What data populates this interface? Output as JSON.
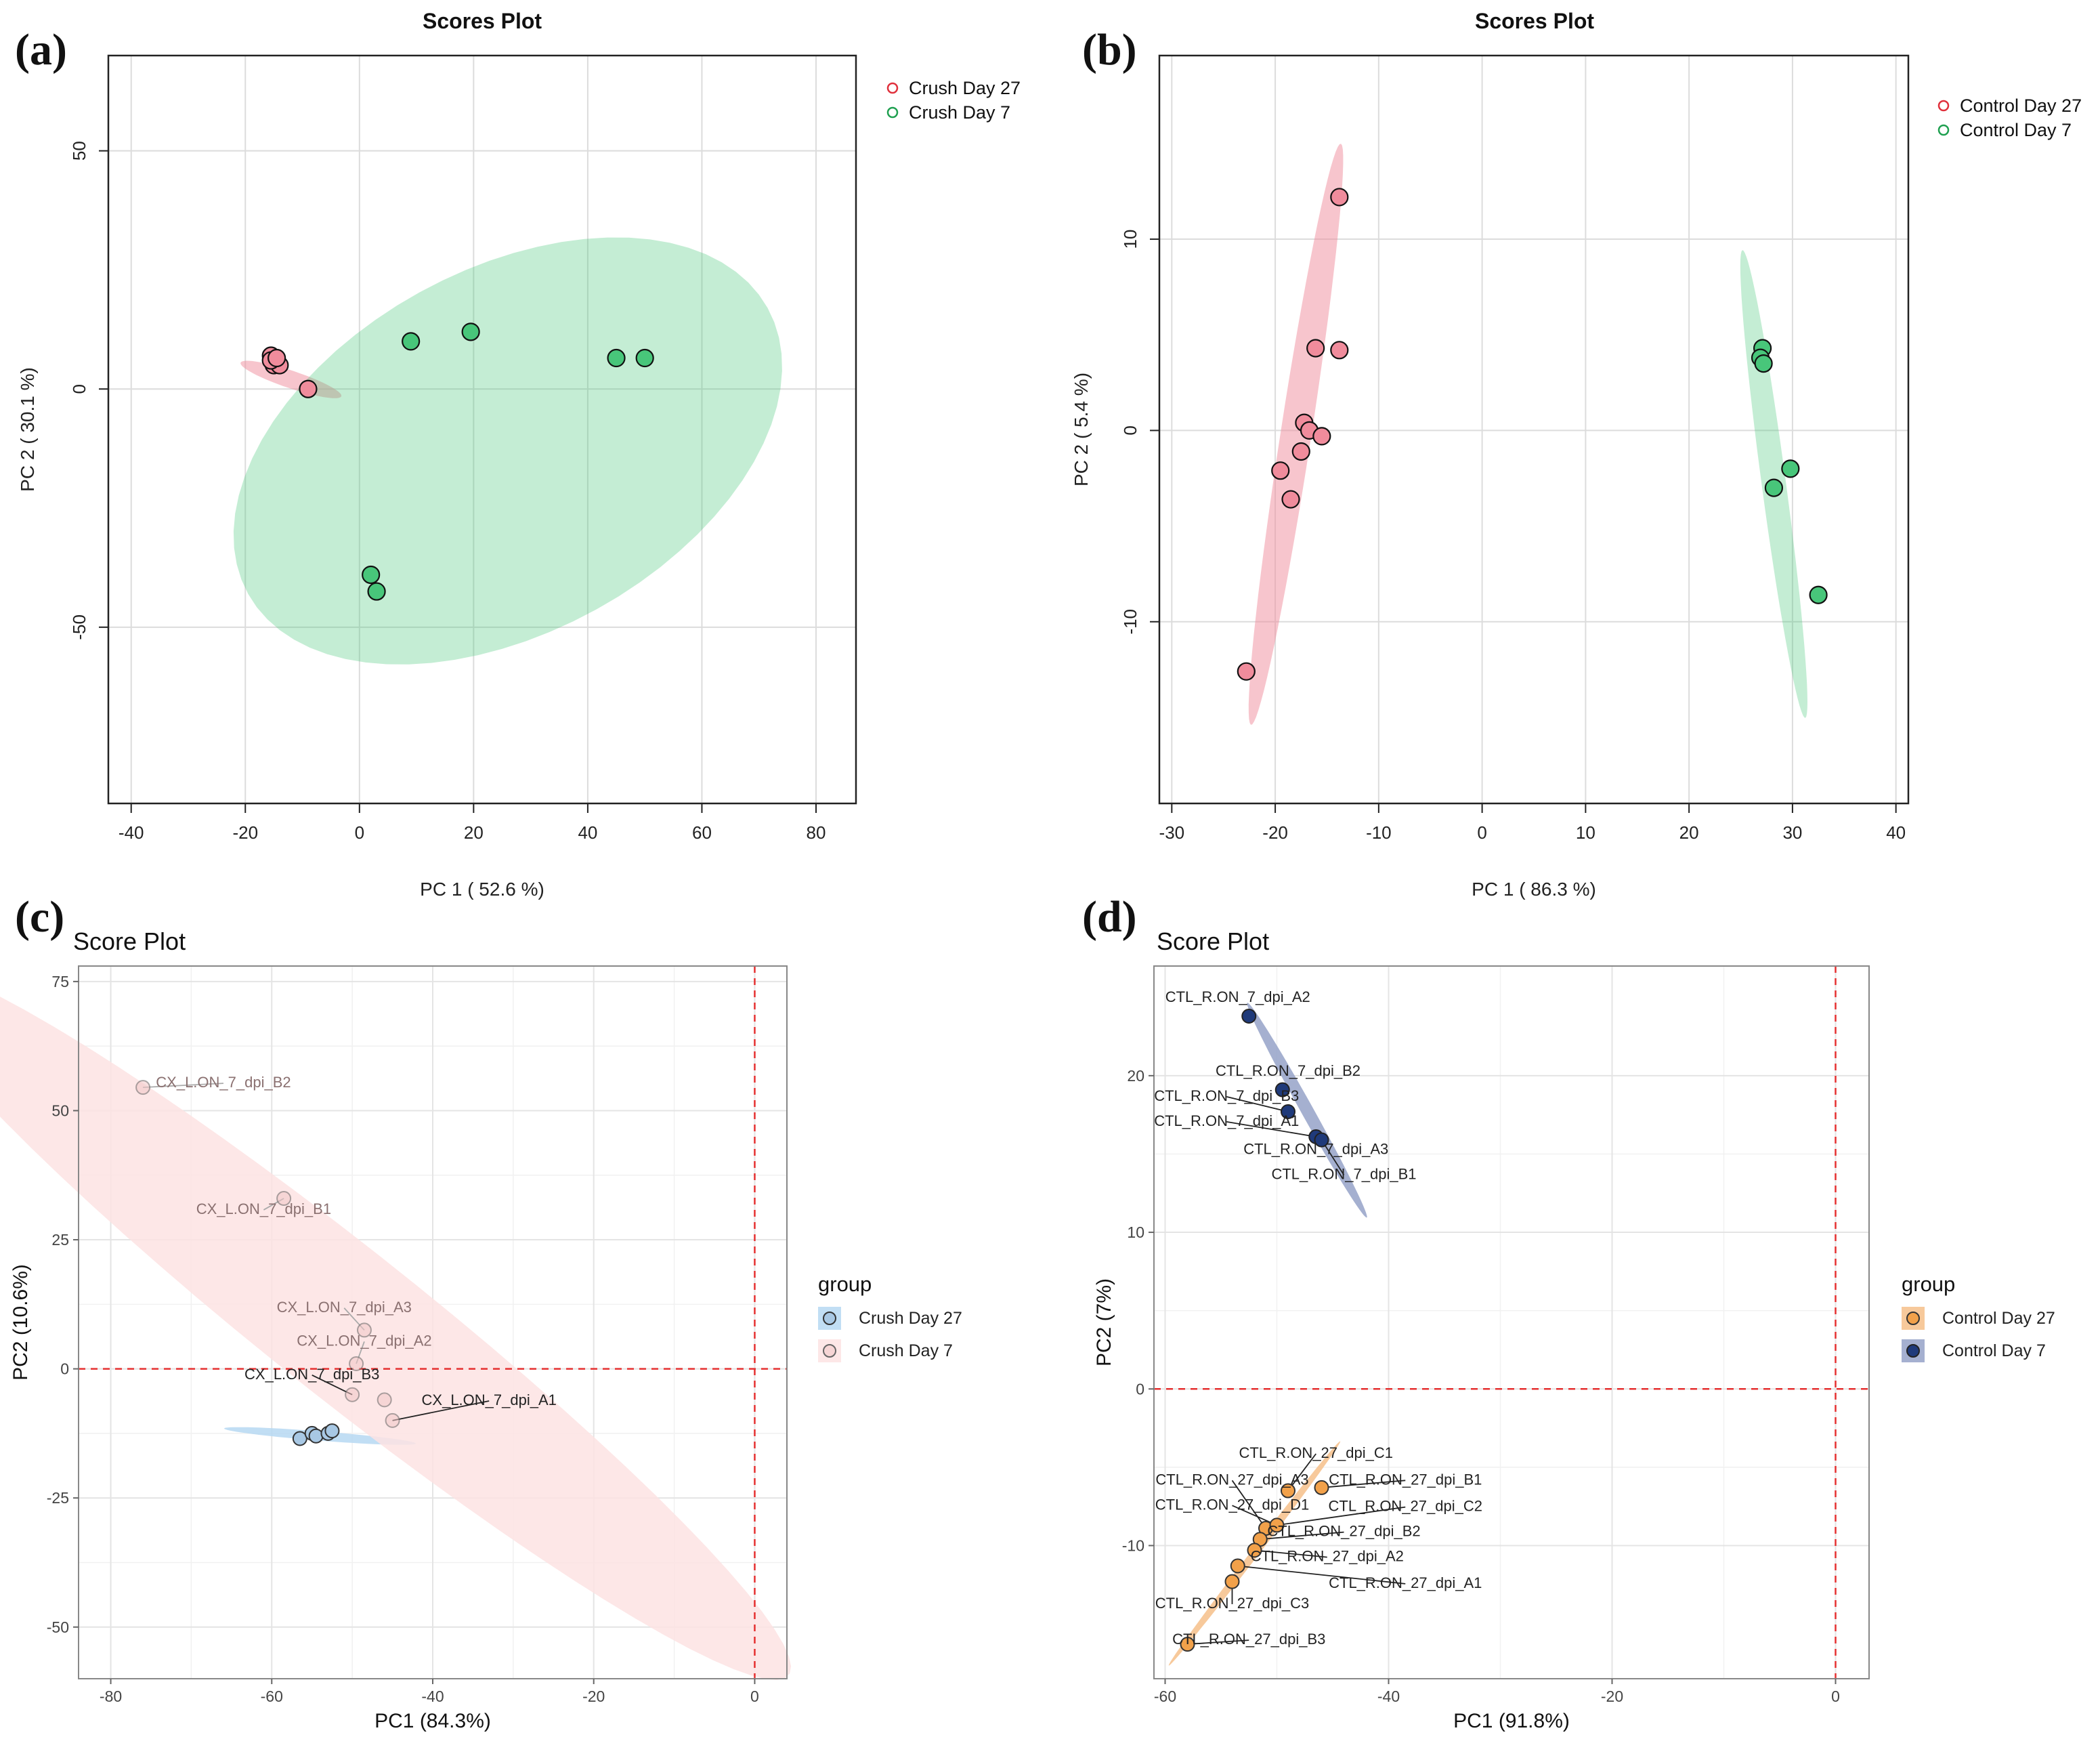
{
  "figure": {
    "panels": [
      "(a)",
      "(b)",
      "(c)",
      "(d)"
    ]
  },
  "chart_data": [
    {
      "panel": "(a)",
      "type": "scatter",
      "style": "metaboanalyst",
      "title": "Scores Plot",
      "xlabel": "PC 1 ( 52.6 %)",
      "ylabel": "PC 2 ( 30.1 %)",
      "xlim": [
        -44,
        87
      ],
      "ylim": [
        -87,
        70
      ],
      "xticks": [
        -40,
        -20,
        0,
        20,
        40,
        60,
        80
      ],
      "yticks": [
        -50,
        0,
        50
      ],
      "grid": true,
      "legend_position": "top-right",
      "series": [
        {
          "name": "Crush Day 27",
          "color": "#f08c9c",
          "legend_color": "#e0303c",
          "points": [
            [
              -15.5,
              7
            ],
            [
              -15,
              5
            ],
            [
              -14,
              5
            ],
            [
              -15.5,
              6
            ],
            [
              -14.5,
              6.5
            ],
            [
              -9,
              0
            ]
          ],
          "ellipse": {
            "cx": -12,
            "cy": 2,
            "rx": 9.5,
            "ry": 1.8,
            "angle": -22
          }
        },
        {
          "name": "Crush Day 7",
          "color": "#48c67a",
          "legend_color": "#1fa050",
          "points": [
            [
              9,
              10
            ],
            [
              19.5,
              12
            ],
            [
              45,
              6.5
            ],
            [
              50,
              6.5
            ],
            [
              2,
              -39
            ],
            [
              3,
              -42.5
            ]
          ],
          "ellipse": {
            "cx": 26,
            "cy": -13,
            "rx": 55,
            "ry": 36,
            "angle": 40
          }
        }
      ]
    },
    {
      "panel": "(b)",
      "type": "scatter",
      "style": "metaboanalyst",
      "title": "Scores Plot",
      "xlabel": "PC 1 ( 86.3 %)",
      "ylabel": "PC 2 ( 5.4 %)",
      "xlim": [
        -31.2,
        41.2
      ],
      "ylim": [
        -19.5,
        19.6
      ],
      "xticks": [
        -30,
        -20,
        -10,
        0,
        10,
        20,
        30,
        40
      ],
      "yticks": [
        -10,
        0,
        10
      ],
      "grid": true,
      "legend_position": "top-right",
      "series": [
        {
          "name": "Control Day 27",
          "color": "#f08c9c",
          "legend_color": "#e0303c",
          "points": [
            [
              -13.8,
              12.2
            ],
            [
              -16.1,
              4.3
            ],
            [
              -13.8,
              4.2
            ],
            [
              -17.2,
              0.4
            ],
            [
              -16.7,
              0
            ],
            [
              -15.5,
              -0.3
            ],
            [
              -17.5,
              -1.1
            ],
            [
              -19.5,
              -2.1
            ],
            [
              -18.5,
              -3.6
            ],
            [
              -22.8,
              -12.6
            ]
          ],
          "ellipse": {
            "cx": -18,
            "cy": -0.2,
            "rx": 15.8,
            "ry": 1.45,
            "angle": 74
          }
        },
        {
          "name": "Control Day 7",
          "color": "#48c67a",
          "legend_color": "#1fa050",
          "points": [
            [
              27.1,
              4.3
            ],
            [
              26.9,
              3.8
            ],
            [
              27.2,
              3.5
            ],
            [
              29.8,
              -2.0
            ],
            [
              28.2,
              -3.0
            ],
            [
              32.5,
              -8.6
            ]
          ],
          "ellipse": {
            "cx": 28.2,
            "cy": -2.8,
            "rx": 12.6,
            "ry": 1.15,
            "angle": -76
          }
        }
      ]
    },
    {
      "panel": "(c)",
      "type": "scatter",
      "style": "ggplot",
      "title": "Score Plot",
      "xlabel": "PC1 (84.3%)",
      "ylabel": "PC2 (10.6%)",
      "xlim": [
        -84,
        4
      ],
      "ylim": [
        -60,
        78
      ],
      "xticks": [
        -80,
        -60,
        -40,
        -20,
        0
      ],
      "yticks": [
        -50,
        -25,
        0,
        25,
        50,
        75
      ],
      "legend_title": "group",
      "legend_position": "right",
      "series": [
        {
          "name": "Crush Day 27",
          "fill": "#a8c8e4",
          "stroke": "#333333",
          "point_alpha": 1,
          "ellipse_fill": "#b6d8f2",
          "points": [
            [
              -56.5,
              -13.5
            ],
            [
              -55,
              -12.5
            ],
            [
              -54.5,
              -13
            ],
            [
              -53,
              -12.5
            ],
            [
              -52.5,
              -12
            ]
          ],
          "ellipse": {
            "cx": -54,
            "cy": -13,
            "rx": 12,
            "ry": 0.9,
            "angle": -7
          }
        },
        {
          "name": "Crush Day 7",
          "fill": "#f1c7c7",
          "stroke": "#666666",
          "point_alpha": 0.55,
          "ellipse_fill": "#fde3e3",
          "points": [
            [
              -76,
              54.5
            ],
            [
              -58.5,
              33
            ],
            [
              -48.5,
              7.5
            ],
            [
              -49.5,
              1
            ],
            [
              -50,
              -5
            ],
            [
              -46,
              -6
            ],
            [
              -45,
              -10
            ]
          ],
          "ellipse": {
            "cx": -51,
            "cy": 9,
            "rx": 88,
            "ry": 11.5,
            "angle": -51.5
          }
        }
      ],
      "labels": [
        {
          "text": "CX_L.ON_7_dpi_B2",
          "x": -76,
          "y": 54.5,
          "lx": -66,
          "ly": 54.5,
          "anchor": "middle",
          "dark": false
        },
        {
          "text": "CX_L.ON_7_dpi_B1",
          "x": -58.5,
          "y": 33,
          "lx": -61,
          "ly": 30,
          "anchor": "middle",
          "dark": false
        },
        {
          "text": "CX_L.ON_7_dpi_A3",
          "x": -48.5,
          "y": 7.5,
          "lx": -51,
          "ly": 11,
          "anchor": "middle",
          "dark": false
        },
        {
          "text": "CX_L.ON_7_dpi_A2",
          "x": -49.5,
          "y": 1,
          "lx": -48.5,
          "ly": 4.5,
          "anchor": "middle",
          "dark": false
        },
        {
          "text": "CX_L.ON_7_dpi_B3",
          "x": -50,
          "y": -5,
          "lx": -55,
          "ly": -2,
          "anchor": "middle",
          "dark": true
        },
        {
          "text": "CX_L.ON_7_dpi_A1",
          "x": -45,
          "y": -10,
          "lx": -33,
          "ly": -7,
          "anchor": "middle",
          "dark": true
        }
      ]
    },
    {
      "panel": "(d)",
      "type": "scatter",
      "style": "ggplot",
      "title": "Score Plot",
      "xlabel": "PC1 (91.8%)",
      "ylabel": "PC2 (7%)",
      "xlim": [
        -61,
        3
      ],
      "ylim": [
        -18.5,
        27
      ],
      "xticks": [
        -60,
        -40,
        -20,
        0
      ],
      "yticks": [
        -10,
        0,
        10,
        20
      ],
      "legend_title": "group",
      "legend_position": "right",
      "series": [
        {
          "name": "Control Day 27",
          "fill": "#f2a14a",
          "stroke": "#333333",
          "point_alpha": 1,
          "ellipse_fill": "#f6c08a",
          "points": [
            [
              -49,
              -6.5
            ],
            [
              -46,
              -6.3
            ],
            [
              -51,
              -8.9
            ],
            [
              -50,
              -8.7
            ],
            [
              -51.5,
              -9.6
            ],
            [
              -52,
              -10.3
            ],
            [
              -53.5,
              -11.3
            ],
            [
              -54,
              -12.3
            ],
            [
              -58,
              -16.3
            ]
          ],
          "ellipse": {
            "cx": -52,
            "cy": -10.5,
            "rx": 10.5,
            "ry": 0.3,
            "angle": 43
          }
        },
        {
          "name": "Control Day 7",
          "fill": "#1f3a7a",
          "stroke": "#222222",
          "point_alpha": 1,
          "ellipse_fill": "#95a2c8",
          "points": [
            [
              -52.5,
              23.8
            ],
            [
              -49.5,
              19.1
            ],
            [
              -49,
              17.7
            ],
            [
              -46.5,
              16.1
            ],
            [
              -46,
              15.9
            ]
          ],
          "ellipse": {
            "cx": -47.3,
            "cy": 17.8,
            "rx": 8.7,
            "ry": 0.5,
            "angle": -52
          }
        }
      ],
      "labels": [
        {
          "text": "CTL_R.ON_7_dpi_A2",
          "x": -52.5,
          "y": 23.8,
          "lx": -53.5,
          "ly": 24.7,
          "anchor": "middle",
          "dark": true
        },
        {
          "text": "CTL_R.ON_7_dpi_B2",
          "x": -49.5,
          "y": 19.1,
          "lx": -49,
          "ly": 20,
          "anchor": "middle",
          "dark": true
        },
        {
          "text": "CTL_R.ON_7_dpi_B3",
          "x": -49,
          "y": 17.7,
          "lx": -54.5,
          "ly": 18.4,
          "anchor": "middle",
          "dark": true
        },
        {
          "text": "CTL_R.ON_7_dpi_A1",
          "x": -46.5,
          "y": 16.1,
          "lx": -54.5,
          "ly": 16.8,
          "anchor": "middle",
          "dark": true
        },
        {
          "text": "CTL_R.ON_7_dpi_A3",
          "x": -46,
          "y": 15.9,
          "lx": -46.5,
          "ly": 15.0,
          "anchor": "middle",
          "dark": true
        },
        {
          "text": "CTL_R.ON_7_dpi_B1",
          "x": -46,
          "y": 15.9,
          "lx": -44,
          "ly": 13.4,
          "anchor": "middle",
          "dark": true
        },
        {
          "text": "CTL_R.ON_27_dpi_C1",
          "x": -49,
          "y": -6.5,
          "lx": -46.5,
          "ly": -4.4,
          "anchor": "middle",
          "dark": true
        },
        {
          "text": "CTL_R.ON_27_dpi_A3",
          "x": -51,
          "y": -8.9,
          "lx": -54,
          "ly": -6.1,
          "anchor": "middle",
          "dark": true
        },
        {
          "text": "CTL_R.ON_27_dpi_B1",
          "x": -46,
          "y": -6.3,
          "lx": -38.5,
          "ly": -6.1,
          "anchor": "middle",
          "dark": true
        },
        {
          "text": "CTL_R.ON_27_dpi_D1",
          "x": -50,
          "y": -8.7,
          "lx": -54,
          "ly": -7.7,
          "anchor": "middle",
          "dark": true
        },
        {
          "text": "CTL_R.ON_27_dpi_C2",
          "x": -50,
          "y": -8.7,
          "lx": -38.5,
          "ly": -7.8,
          "anchor": "middle",
          "dark": true
        },
        {
          "text": "CTL_R.ON_27_dpi_B2",
          "x": -51.5,
          "y": -9.6,
          "lx": -44,
          "ly": -9.4,
          "anchor": "middle",
          "dark": true
        },
        {
          "text": "CTL_R.ON_27_dpi_A2",
          "x": -52,
          "y": -10.3,
          "lx": -45.5,
          "ly": -11.0,
          "anchor": "middle",
          "dark": true
        },
        {
          "text": "CTL_R.ON_27_dpi_A1",
          "x": -53.5,
          "y": -11.3,
          "lx": -38.5,
          "ly": -12.7,
          "anchor": "middle",
          "dark": true
        },
        {
          "text": "CTL_R.ON_27_dpi_C3",
          "x": -54,
          "y": -12.3,
          "lx": -54,
          "ly": -14.0,
          "anchor": "middle",
          "dark": true
        },
        {
          "text": "CTL_R.ON_27_dpi_B3",
          "x": -58,
          "y": -16.3,
          "lx": -52.5,
          "ly": -16.3,
          "anchor": "middle",
          "dark": true
        }
      ]
    }
  ]
}
